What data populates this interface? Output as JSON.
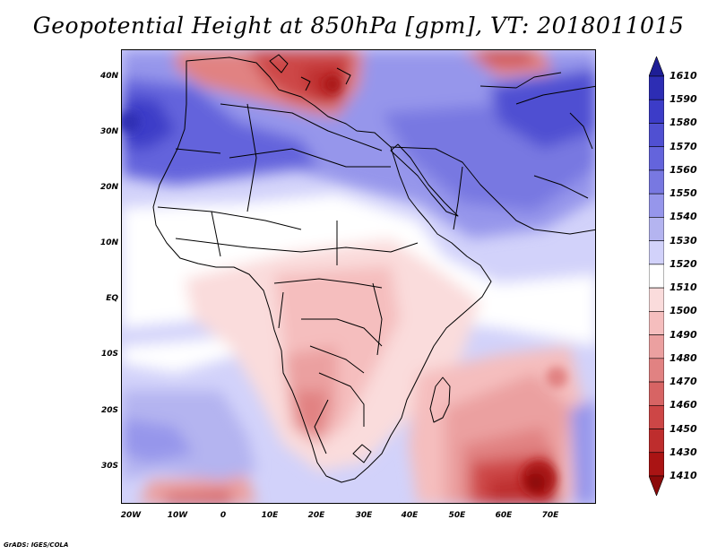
{
  "title": "Geopotential Height at 850hPa [gpm], VT: 2018011015",
  "footer": "GrADS: IGES/COLA",
  "lat_labels": [
    "40N",
    "30N",
    "20N",
    "10N",
    "EQ",
    "10S",
    "20S",
    "30S"
  ],
  "lon_labels": [
    "20W",
    "10W",
    "0",
    "10E",
    "20E",
    "30E",
    "40E",
    "50E",
    "60E",
    "70E"
  ],
  "colorbar": {
    "labels": [
      "1610",
      "1590",
      "1580",
      "1570",
      "1560",
      "1550",
      "1540",
      "1530",
      "1520",
      "1510",
      "1500",
      "1490",
      "1480",
      "1470",
      "1460",
      "1450",
      "1430",
      "1410"
    ],
    "colors": [
      "#1e1e96",
      "#2d2db4",
      "#3c3cc8",
      "#5050d2",
      "#6464dc",
      "#7878e1",
      "#9696eb",
      "#b4b4f0",
      "#d2d2fa",
      "#ffffff",
      "#fadcdc",
      "#f5bebe",
      "#eba0a0",
      "#e18282",
      "#d76464",
      "#cd4646",
      "#be2d2d",
      "#aa1414",
      "#8c0a0a"
    ]
  },
  "colors": {
    "land_outline": "#000000",
    "background": "#ffffff"
  }
}
